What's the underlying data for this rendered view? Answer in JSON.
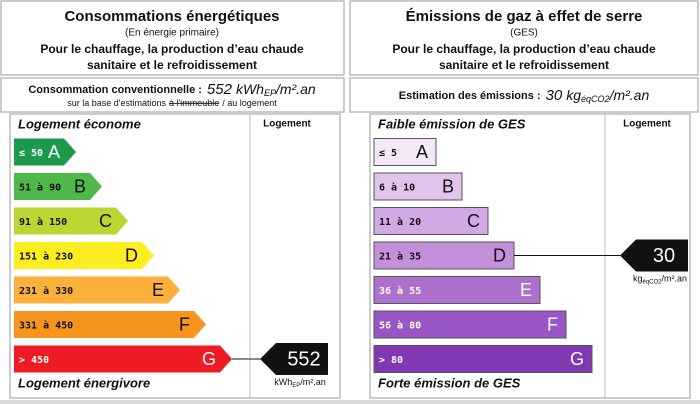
{
  "energy": {
    "title": "Consommations énergétiques",
    "subtitle": "(En énergie primaire)",
    "scope_lines": [
      "Pour le chauffage, la production d’eau chaude",
      "sanitaire et le refroidissement"
    ],
    "summary_label": "Consommation conventionnelle :",
    "value": 552,
    "unit": [
      "kWh",
      "EP",
      "/m².an"
    ],
    "basis": [
      "sur la base d'estimations",
      "à l'immeuble",
      "/ au logement"
    ],
    "column_header": "Logement",
    "top_label": "Logement économe",
    "bottom_label": "Logement énergivore",
    "rating": "G",
    "classes": [
      {
        "range": "≤ 50",
        "letter": "A",
        "color": "#1a9a4a"
      },
      {
        "range": "51 à 90",
        "letter": "B",
        "color": "#50b848"
      },
      {
        "range": "91 à 150",
        "letter": "C",
        "color": "#bcd631"
      },
      {
        "range": "151 à 230",
        "letter": "D",
        "color": "#fcee21"
      },
      {
        "range": "231 à 330",
        "letter": "E",
        "color": "#fbb03b"
      },
      {
        "range": "331 à 450",
        "letter": "F",
        "color": "#f7941d"
      },
      {
        "range": "> 450",
        "letter": "G",
        "color": "#ed1c24"
      }
    ]
  },
  "ghg": {
    "title": "Émissions de gaz à effet de serre",
    "subtitle": "(GES)",
    "scope_lines": [
      "Pour le chauffage, la production d’eau chaude",
      "sanitaire et le refroidissement"
    ],
    "summary_label": "Estimation des émissions :",
    "value": 30,
    "unit": [
      "kg",
      "éqCO2",
      "/m².an"
    ],
    "column_header": "Logement",
    "top_label": "Faible émission de GES",
    "bottom_label": "Forte émission de GES",
    "rating": "D",
    "classes": [
      {
        "range": "≤ 5",
        "letter": "A",
        "color": "#f3e8f8"
      },
      {
        "range": "6 à 10",
        "letter": "B",
        "color": "#e0c4ec"
      },
      {
        "range": "11 à 20",
        "letter": "C",
        "color": "#d3a9e5"
      },
      {
        "range": "21 à 35",
        "letter": "D",
        "color": "#c490dc"
      },
      {
        "range": "36 à 55",
        "letter": "E",
        "color": "#ae70cf"
      },
      {
        "range": "56 à 80",
        "letter": "F",
        "color": "#9a56c4"
      },
      {
        "range": "> 80",
        "letter": "G",
        "color": "#8039b3"
      }
    ]
  }
}
